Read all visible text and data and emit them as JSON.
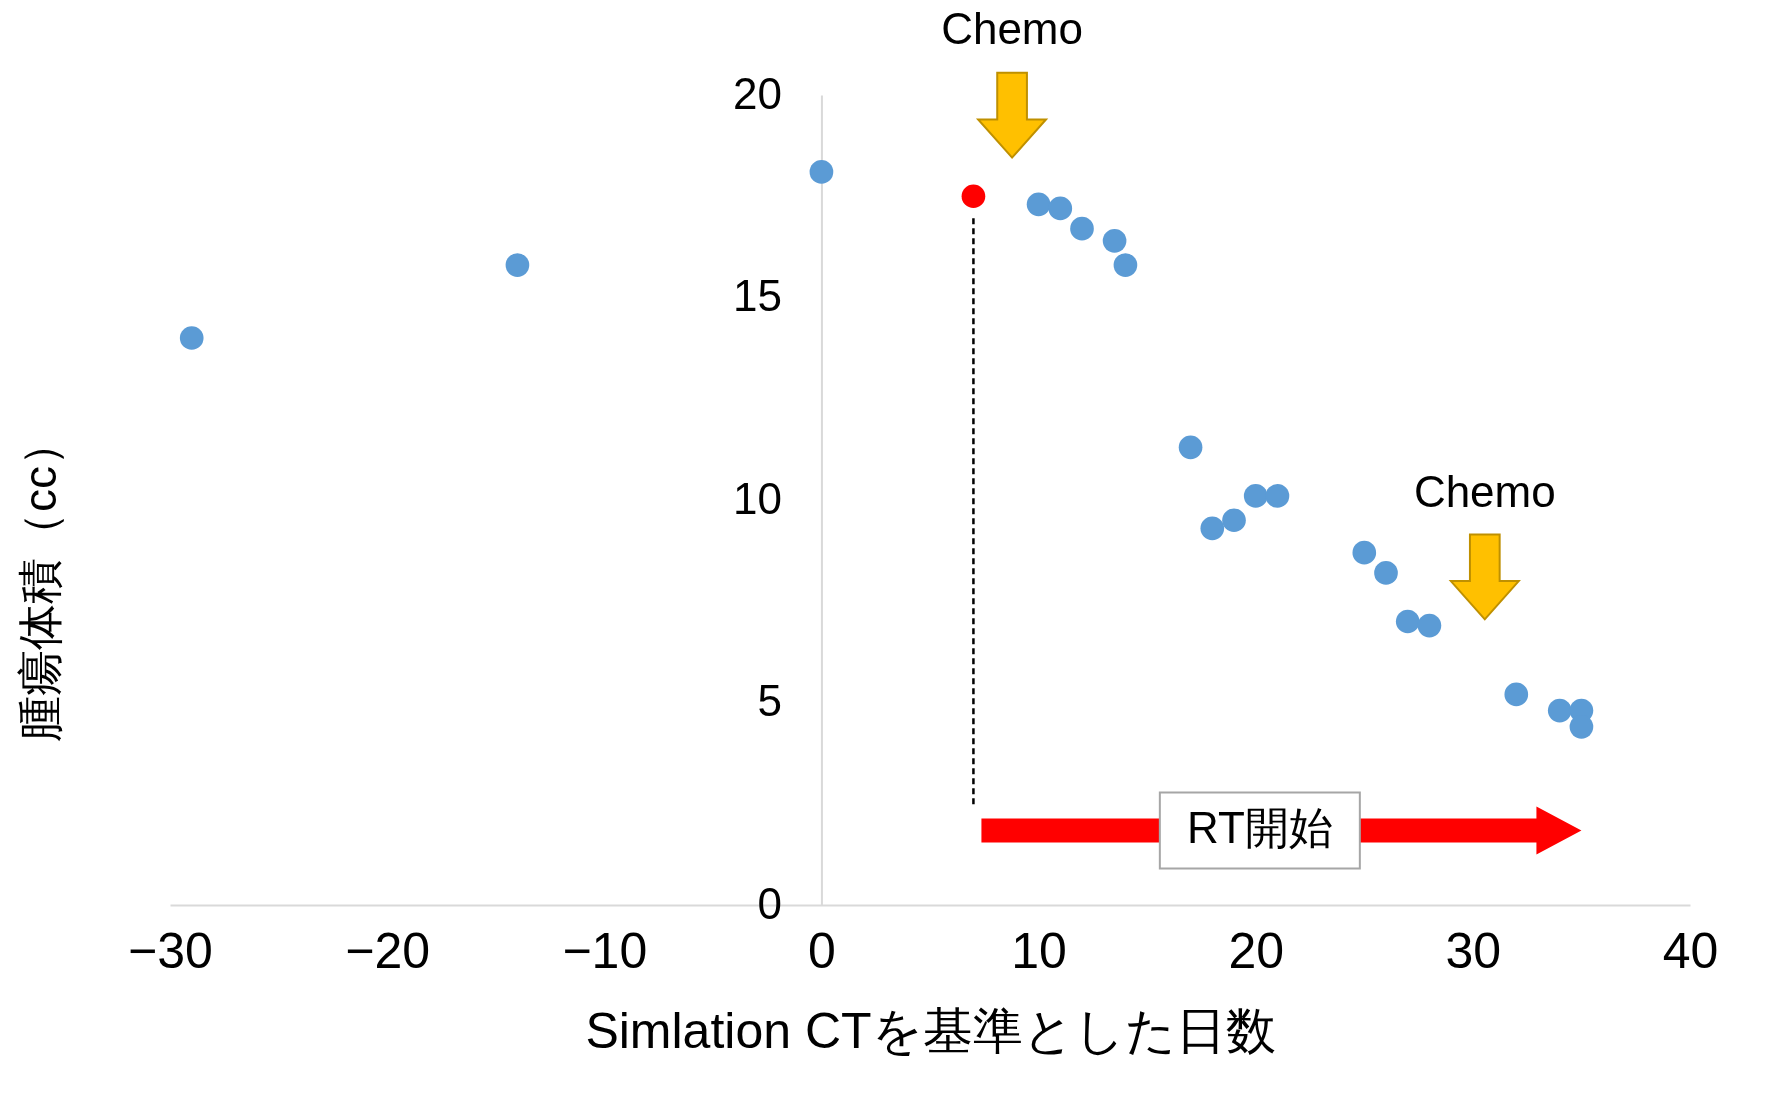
{
  "chart_data": {
    "type": "scatter",
    "xlabel": "Simlation CTを基準とした日数",
    "ylabel": "腫瘍体積（cc）",
    "xlim": [
      -30,
      40
    ],
    "ylim": [
      0,
      20
    ],
    "xticks": [
      -30,
      -20,
      -10,
      0,
      10,
      20,
      30,
      40
    ],
    "yticks": [
      0,
      5,
      10,
      15,
      20
    ],
    "grid": false,
    "marker": "circle",
    "series": [
      {
        "color": "#5b9bd5",
        "x": [
          -29,
          -14,
          0,
          10,
          11,
          12,
          13.5,
          14,
          17,
          18,
          19,
          20,
          21,
          25,
          26,
          27,
          28,
          32,
          34,
          35,
          35
        ],
        "values": [
          14.0,
          15.8,
          18.1,
          17.3,
          17.2,
          16.7,
          16.4,
          15.8,
          11.3,
          9.3,
          9.5,
          10.1,
          10.1,
          8.7,
          8.2,
          7.0,
          6.9,
          5.2,
          4.8,
          4.8,
          4.4
        ]
      },
      {
        "color": "#ff0000",
        "x": [
          7
        ],
        "values": [
          17.5
        ]
      }
    ],
    "ref_lines": [
      {
        "axis": "x",
        "value": 7,
        "color": "#000000",
        "line_style": "dashed"
      }
    ],
    "annotations": [
      "Chemo",
      "Chemo",
      "RT開始"
    ]
  }
}
